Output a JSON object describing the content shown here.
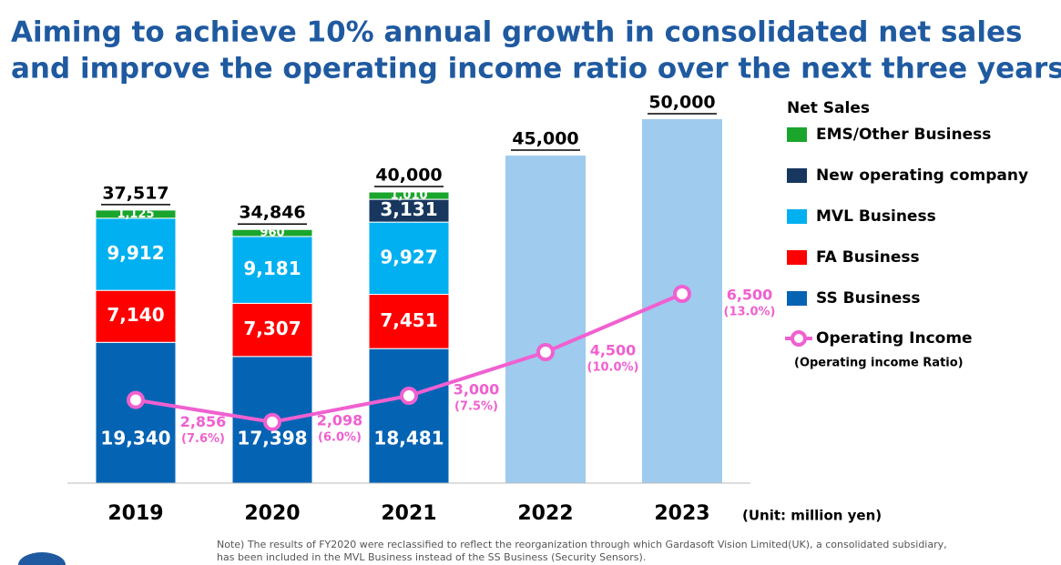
{
  "chart_data": {
    "type": "bar",
    "title": [
      "Aiming to achieve 10% annual growth in consolidated net sales",
      "and improve the operating income ratio over the next three years."
    ],
    "categories": [
      "2019",
      "2020",
      "2021",
      "2022",
      "2023"
    ],
    "legend_title": "Net Sales",
    "series": [
      {
        "name": "SS Business",
        "color": "#0563b4",
        "values": [
          19340,
          17398,
          18481,
          null,
          null
        ],
        "value_labels": [
          "19,340",
          "17,398",
          "18,481",
          null,
          null
        ]
      },
      {
        "name": "FA Business",
        "color": "#ff0000",
        "values": [
          7140,
          7307,
          7451,
          null,
          null
        ],
        "value_labels": [
          "7,140",
          "7,307",
          "7,451",
          null,
          null
        ]
      },
      {
        "name": "MVL Business",
        "color": "#00b0f0",
        "values": [
          9912,
          9181,
          9927,
          null,
          null
        ],
        "value_labels": [
          "9,912",
          "9,181",
          "9,927",
          null,
          null
        ]
      },
      {
        "name": "New operating company",
        "color": "#17375e",
        "values": [
          null,
          null,
          3131,
          null,
          null
        ],
        "value_labels": [
          null,
          null,
          "3,131",
          null,
          null
        ]
      },
      {
        "name": "EMS/Other Business",
        "color": "#1aa52c",
        "values": [
          1125,
          960,
          1010,
          null,
          null
        ],
        "value_labels": [
          "1,125",
          "960",
          "1,010",
          null,
          null
        ]
      }
    ],
    "totals": {
      "color": "#9fcbee",
      "values": [
        37517,
        34846,
        40000,
        45000,
        50000
      ],
      "value_labels": [
        "37,517",
        "34,846",
        "40,000",
        "45,000",
        "50,000"
      ]
    },
    "line": {
      "name": "Operating Income",
      "subtitle": "(Operating income Ratio)",
      "color": "#f060d0",
      "axis": "y2",
      "values": [
        2856,
        2098,
        3000,
        4500,
        6500
      ],
      "value_labels": [
        "2,856",
        "2,098",
        "3,000",
        "4,500",
        "6,500"
      ],
      "ratios": [
        7.6,
        6.0,
        7.5,
        10.0,
        13.0
      ],
      "ratio_labels": [
        "(7.6%)",
        "(6.0%)",
        "(7.5%)",
        "(10.0%)",
        "(13.0%)"
      ]
    },
    "ylim": [
      0,
      50000
    ],
    "y2lim": [
      0,
      12500
    ],
    "unit": "(Unit: million yen)",
    "note": [
      "Note) The results of FY2020 were reclassified to reflect the reorganization through which Gardasoft Vision Limited(UK), a consolidated subsidiary,",
      "has been included in the MVL Business instead of the SS Business (Security Sensors)."
    ]
  }
}
